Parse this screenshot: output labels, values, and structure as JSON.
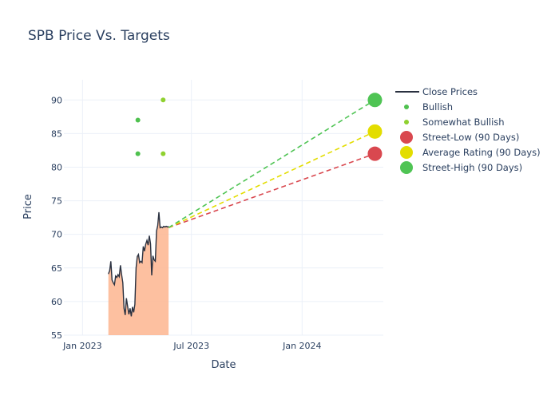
{
  "chart_data": {
    "type": "line",
    "title": "SPB Price Vs. Targets",
    "xlabel": "Date",
    "ylabel": "Price",
    "xlim": [
      "2022-12-01",
      "2024-05-15"
    ],
    "ylim": [
      55,
      93
    ],
    "x_ticks": [
      {
        "date": "2023-01-01",
        "label": "Jan 2023"
      },
      {
        "date": "2023-07-01",
        "label": "Jul 2023"
      },
      {
        "date": "2024-01-01",
        "label": "Jan 2024"
      }
    ],
    "y_ticks": [
      55,
      60,
      65,
      70,
      75,
      80,
      85,
      90
    ],
    "grid": true,
    "legend_position": "top-right",
    "colors": {
      "close": "#2a3140",
      "area": "#fdb58f",
      "bullish": "#4fc14f",
      "somewhat_bullish": "#8fd12f",
      "street_low": "#d9484f",
      "average": "#e3dd00",
      "street_high": "#4fc454"
    },
    "series": [
      {
        "name": "Close Prices",
        "type": "line",
        "x": [
          "2023-02-13",
          "2023-02-15",
          "2023-02-17",
          "2023-02-19",
          "2023-02-21",
          "2023-02-23",
          "2023-02-25",
          "2023-02-27",
          "2023-03-01",
          "2023-03-03",
          "2023-03-05",
          "2023-03-07",
          "2023-03-09",
          "2023-03-11",
          "2023-03-13",
          "2023-03-15",
          "2023-03-17",
          "2023-03-19",
          "2023-03-21",
          "2023-03-23",
          "2023-03-25",
          "2023-03-27",
          "2023-03-29",
          "2023-03-31",
          "2023-04-02",
          "2023-04-04",
          "2023-04-06",
          "2023-04-08",
          "2023-04-10",
          "2023-04-12",
          "2023-04-14",
          "2023-04-16",
          "2023-04-18",
          "2023-04-20",
          "2023-04-22",
          "2023-04-24",
          "2023-04-26",
          "2023-04-28",
          "2023-04-30",
          "2023-05-02",
          "2023-05-04",
          "2023-05-06",
          "2023-05-08",
          "2023-05-10",
          "2023-05-12",
          "2023-05-14",
          "2023-05-16",
          "2023-05-18",
          "2023-05-20",
          "2023-05-22",
          "2023-05-24"
        ],
        "values": [
          64.1,
          64.6,
          66.0,
          63.2,
          62.8,
          62.5,
          63.8,
          63.6,
          64.0,
          63.7,
          65.4,
          64.0,
          62.8,
          59.0,
          58.0,
          60.5,
          59.3,
          58.1,
          59.0,
          57.8,
          59.2,
          58.4,
          59.6,
          65.0,
          66.7,
          67.0,
          65.8,
          66.0,
          65.8,
          68.2,
          67.5,
          68.5,
          69.1,
          68.4,
          69.8,
          68.6,
          63.9,
          66.8,
          66.2,
          66.0,
          70.5,
          71.3,
          73.3,
          71.0,
          71.1,
          71.0,
          71.2,
          71.1,
          71.2,
          71.1,
          71.2
        ]
      },
      {
        "name": "Bullish",
        "type": "scatter",
        "points": [
          {
            "x": "2023-04-03",
            "y": 87
          },
          {
            "x": "2023-04-03",
            "y": 82
          }
        ]
      },
      {
        "name": "Somewhat Bullish",
        "type": "scatter",
        "points": [
          {
            "x": "2023-05-15",
            "y": 90
          },
          {
            "x": "2023-05-15",
            "y": 82
          }
        ]
      },
      {
        "name": "Street-Low (90 Days)",
        "type": "target",
        "from": {
          "x": "2023-05-24",
          "y": 71.0
        },
        "to": {
          "x": "2024-05-01",
          "y": 82
        }
      },
      {
        "name": "Average Rating (90 Days)",
        "type": "target",
        "from": {
          "x": "2023-05-24",
          "y": 71.0
        },
        "to": {
          "x": "2024-05-01",
          "y": 85.3
        }
      },
      {
        "name": "Street-High (90 Days)",
        "type": "target",
        "from": {
          "x": "2023-05-24",
          "y": 71.0
        },
        "to": {
          "x": "2024-05-01",
          "y": 90
        }
      }
    ],
    "legend": [
      {
        "label": "Close Prices",
        "kind": "line",
        "colorKey": "close"
      },
      {
        "label": "Bullish",
        "kind": "dot",
        "colorKey": "bullish"
      },
      {
        "label": "Somewhat Bullish",
        "kind": "dot",
        "colorKey": "somewhat_bullish"
      },
      {
        "label": "Street-Low (90 Days)",
        "kind": "circle",
        "colorKey": "street_low"
      },
      {
        "label": "Average Rating (90 Days)",
        "kind": "circle",
        "colorKey": "average"
      },
      {
        "label": "Street-High (90 Days)",
        "kind": "circle",
        "colorKey": "street_high"
      }
    ]
  }
}
